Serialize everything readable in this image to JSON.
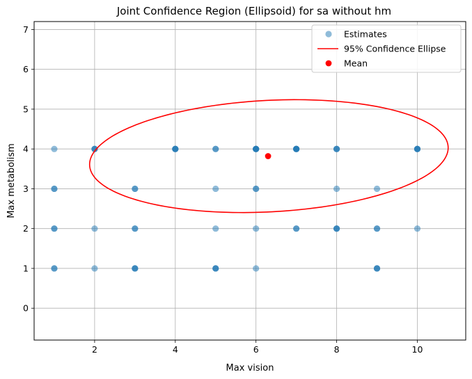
{
  "chart_data": {
    "type": "scatter",
    "title": "Joint Confidence Region (Ellipsoid) for sa without hm",
    "xlabel": "Max vision",
    "ylabel": "Max metabolism",
    "xlim": [
      0.5,
      11.2
    ],
    "ylim": [
      -0.8,
      7.2
    ],
    "xticks": [
      2,
      4,
      6,
      8,
      10
    ],
    "yticks": [
      0,
      1,
      2,
      3,
      4,
      5,
      6,
      7
    ],
    "grid": true,
    "legend_position": "top-right",
    "series": [
      {
        "name": "Estimates",
        "kind": "scatter",
        "color": "#1f77b4",
        "alpha": 0.5,
        "points": [
          [
            1,
            4
          ],
          [
            1,
            3
          ],
          [
            1,
            3
          ],
          [
            1,
            2
          ],
          [
            1,
            2
          ],
          [
            1,
            1
          ],
          [
            1,
            1
          ],
          [
            2,
            4
          ],
          [
            2,
            4
          ],
          [
            2,
            4
          ],
          [
            2,
            2
          ],
          [
            2,
            1
          ],
          [
            3,
            3
          ],
          [
            3,
            3
          ],
          [
            3,
            2
          ],
          [
            3,
            2
          ],
          [
            3,
            1
          ],
          [
            3,
            1
          ],
          [
            3,
            1
          ],
          [
            4,
            4
          ],
          [
            4,
            4
          ],
          [
            4,
            4
          ],
          [
            4,
            4
          ],
          [
            5,
            4
          ],
          [
            5,
            4
          ],
          [
            5,
            3
          ],
          [
            5,
            2
          ],
          [
            5,
            1
          ],
          [
            5,
            1
          ],
          [
            5,
            1
          ],
          [
            6,
            4
          ],
          [
            6,
            4
          ],
          [
            6,
            4
          ],
          [
            6,
            4
          ],
          [
            6,
            4
          ],
          [
            6,
            3
          ],
          [
            6,
            3
          ],
          [
            6,
            2
          ],
          [
            6,
            1
          ],
          [
            7,
            4
          ],
          [
            7,
            4
          ],
          [
            7,
            4
          ],
          [
            7,
            4
          ],
          [
            7,
            4
          ],
          [
            7,
            2
          ],
          [
            7,
            2
          ],
          [
            8,
            4
          ],
          [
            8,
            4
          ],
          [
            8,
            4
          ],
          [
            8,
            3
          ],
          [
            8,
            2
          ],
          [
            8,
            2
          ],
          [
            8,
            2
          ],
          [
            9,
            3
          ],
          [
            9,
            2
          ],
          [
            9,
            2
          ],
          [
            9,
            1
          ],
          [
            9,
            1
          ],
          [
            9,
            1
          ],
          [
            10,
            4
          ],
          [
            10,
            4
          ],
          [
            10,
            4
          ],
          [
            10,
            4
          ],
          [
            10,
            2
          ]
        ]
      },
      {
        "name": "95% Confidence Ellipse",
        "kind": "ellipse",
        "color": "#ff0000",
        "center": [
          6.32,
          3.82
        ],
        "semi_axes": [
          4.45,
          1.4
        ],
        "angle_deg": 3
      },
      {
        "name": "Mean",
        "kind": "point",
        "color": "#ff0000",
        "points": [
          [
            6.3,
            3.82
          ]
        ]
      }
    ]
  }
}
